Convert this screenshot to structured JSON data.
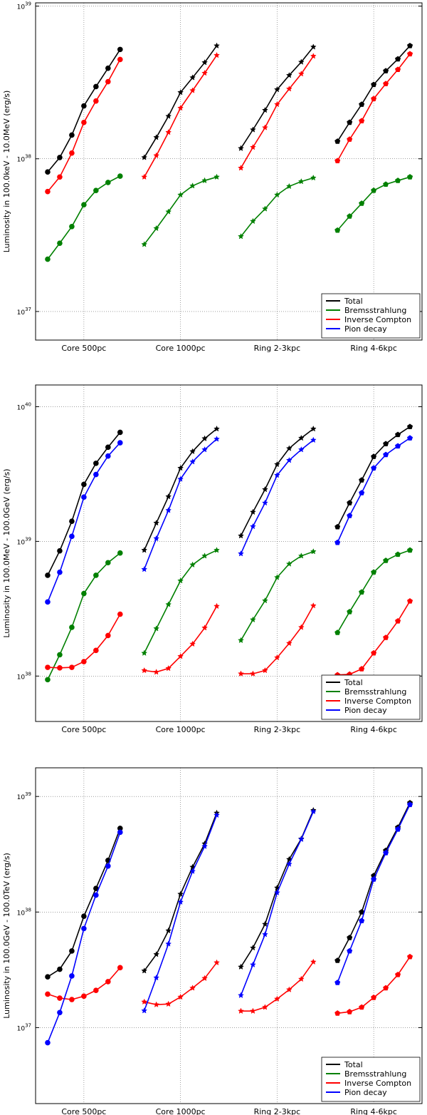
{
  "chart_data": [
    {
      "type": "line",
      "ylabel": "Luminosity in 100.0keV -  10.0MeV (erg/s)",
      "log_y": true,
      "grid": true,
      "legend": "lower right",
      "categories": [
        "Core 500pc",
        "Core 1000pc",
        "Ring 2-3kpc",
        "Ring 4-6kpc"
      ],
      "markers": [
        "circle",
        "star",
        "star",
        "pentagon"
      ],
      "ylim": [
        6.5e+36,
        1.05e+39
      ],
      "yticks": [
        {
          "value": 1e+37,
          "label": "10^37"
        },
        {
          "value": 1e+38,
          "label": "10^38"
        },
        {
          "value": 1e+39,
          "label": "10^39"
        }
      ],
      "series": [
        {
          "name": "Total",
          "color": "#000000",
          "values": [
            [
              8.2e+37,
              1.02e+38,
              1.43e+38,
              2.22e+38,
              2.97e+38,
              3.92e+38,
              5.2e+38
            ],
            [
              1.02e+38,
              1.38e+38,
              1.9e+38,
              2.72e+38,
              3.4e+38,
              4.27e+38,
              5.5e+38
            ],
            [
              1.17e+38,
              1.55e+38,
              2.08e+38,
              2.84e+38,
              3.52e+38,
              4.3e+38,
              5.4e+38
            ],
            [
              1.3e+38,
              1.73e+38,
              2.27e+38,
              3.06e+38,
              3.76e+38,
              4.5e+38,
              5.5e+38
            ]
          ]
        },
        {
          "name": "Bremsstrahlung",
          "color": "#008000",
          "values": [
            [
              2.2e+37,
              2.8e+37,
              3.6e+37,
              5e+37,
              6.2e+37,
              7e+37,
              7.7e+37
            ],
            [
              2.75e+37,
              3.5e+37,
              4.5e+37,
              5.8e+37,
              6.65e+37,
              7.2e+37,
              7.6e+37
            ],
            [
              3.1e+37,
              3.9e+37,
              4.7e+37,
              5.8e+37,
              6.6e+37,
              7.1e+37,
              7.5e+37
            ],
            [
              3.4e+37,
              4.2e+37,
              5.1e+37,
              6.2e+37,
              6.8e+37,
              7.2e+37,
              7.6e+37
            ]
          ]
        },
        {
          "name": "Inverse Compton",
          "color": "#ff0000",
          "values": [
            [
              6.1e+37,
              7.6e+37,
              1.09e+38,
              1.73e+38,
              2.39e+38,
              3.2e+38,
              4.47e+38
            ],
            [
              7.6e+37,
              1.05e+38,
              1.49e+38,
              2.15e+38,
              2.8e+38,
              3.64e+38,
              4.76e+38
            ],
            [
              8.7e+37,
              1.19e+38,
              1.6e+38,
              2.27e+38,
              2.87e+38,
              3.6e+38,
              4.7e+38
            ],
            [
              9.7e+37,
              1.34e+38,
              1.77e+38,
              2.47e+38,
              3.1e+38,
              3.84e+38,
              4.86e+38
            ]
          ]
        },
        {
          "name": "Pion decay",
          "color": "#0000ff",
          "values": [
            [
              null,
              null,
              null,
              null,
              null,
              null,
              null
            ],
            [
              null,
              null,
              null,
              null,
              null,
              null,
              null
            ],
            [
              null,
              null,
              null,
              null,
              null,
              null,
              null
            ],
            [
              null,
              null,
              null,
              null,
              null,
              null,
              null
            ]
          ]
        }
      ]
    },
    {
      "type": "line",
      "ylabel": "Luminosity in 100.0MeV - 100.0GeV (erg/s)",
      "log_y": true,
      "grid": true,
      "legend": "lower right",
      "categories": [
        "Core 500pc",
        "Core 1000pc",
        "Ring 2-3kpc",
        "Ring 4-6kpc"
      ],
      "markers": [
        "circle",
        "star",
        "star",
        "pentagon"
      ],
      "ylim": [
        4.6e+37,
        1.45e+40
      ],
      "yticks": [
        {
          "value": 1e+38,
          "label": "10^38"
        },
        {
          "value": 1e+39,
          "label": "10^39"
        },
        {
          "value": 1e+40,
          "label": "10^40"
        }
      ],
      "series": [
        {
          "name": "Total",
          "color": "#000000",
          "values": [
            [
              5.6e+38,
              8.5e+38,
              1.41e+39,
              2.65e+39,
              3.8e+39,
              5e+39,
              6.45e+39
            ],
            [
              8.6e+38,
              1.37e+39,
              2.15e+39,
              3.5e+39,
              4.65e+39,
              5.8e+39,
              6.85e+39
            ],
            [
              1.1e+39,
              1.65e+39,
              2.43e+39,
              3.73e+39,
              4.9e+39,
              5.85e+39,
              6.85e+39
            ],
            [
              1.28e+39,
              1.93e+39,
              2.85e+39,
              4.26e+39,
              5.3e+39,
              6.2e+39,
              7.1e+39
            ]
          ]
        },
        {
          "name": "Bremsstrahlung",
          "color": "#008000",
          "values": [
            [
              9.4e+37,
              1.44e+38,
              2.3e+38,
              4.1e+38,
              5.6e+38,
              6.95e+38,
              8.2e+38
            ],
            [
              1.48e+38,
              2.25e+38,
              3.4e+38,
              5.1e+38,
              6.7e+38,
              7.8e+38,
              8.6e+38
            ],
            [
              1.84e+38,
              2.62e+38,
              3.63e+38,
              5.4e+38,
              6.8e+38,
              7.8e+38,
              8.4e+38
            ],
            [
              2.1e+38,
              3e+38,
              4.2e+38,
              5.9e+38,
              7.2e+38,
              8e+38,
              8.6e+38
            ]
          ]
        },
        {
          "name": "Inverse Compton",
          "color": "#ff0000",
          "values": [
            [
              1.16e+38,
              1.15e+38,
              1.16e+38,
              1.28e+38,
              1.55e+38,
              2e+38,
              2.88e+38
            ],
            [
              1.1e+38,
              1.07e+38,
              1.14e+38,
              1.4e+38,
              1.73e+38,
              2.28e+38,
              3.3e+38
            ],
            [
              1.04e+38,
              1.04e+38,
              1.1e+38,
              1.37e+38,
              1.75e+38,
              2.3e+38,
              3.33e+38
            ],
            [
              1.02e+38,
              1.03e+38,
              1.13e+38,
              1.48e+38,
              1.93e+38,
              2.56e+38,
              3.6e+38
            ]
          ]
        },
        {
          "name": "Pion decay",
          "color": "#0000ff",
          "values": [
            [
              3.55e+38,
              5.9e+38,
              1.09e+39,
              2.13e+39,
              3.14e+39,
              4.3e+39,
              5.4e+39
            ],
            [
              6.2e+38,
              1.05e+39,
              1.7e+39,
              2.9e+39,
              3.9e+39,
              4.8e+39,
              5.75e+39
            ],
            [
              8.1e+38,
              1.29e+39,
              1.93e+39,
              3.1e+39,
              4e+39,
              4.8e+39,
              5.65e+39
            ],
            [
              9.8e+38,
              1.55e+39,
              2.29e+39,
              3.5e+39,
              4.4e+39,
              5.1e+39,
              5.85e+39
            ]
          ]
        }
      ]
    },
    {
      "type": "line",
      "ylabel": "Luminosity in 100.0GeV - 100.0TeV (erg/s)",
      "log_y": true,
      "grid": true,
      "legend": "lower right",
      "categories": [
        "Core 500pc",
        "Core 1000pc",
        "Ring 2-3kpc",
        "Ring 4-6kpc"
      ],
      "markers": [
        "circle",
        "star",
        "star",
        "pentagon"
      ],
      "ylim": [
        2.2e+36,
        1.77e+39
      ],
      "yticks": [
        {
          "value": 1e+37,
          "label": "10^37"
        },
        {
          "value": 1e+38,
          "label": "10^38"
        },
        {
          "value": 1e+39,
          "label": "10^39"
        }
      ],
      "series": [
        {
          "name": "Total",
          "color": "#000000",
          "values": [
            [
              2.75e+37,
              3.2e+37,
              4.6e+37,
              9.2e+37,
              1.6e+38,
              2.8e+38,
              5.3e+38
            ],
            [
              3.1e+37,
              4.3e+37,
              6.9e+37,
              1.43e+38,
              2.45e+38,
              3.9e+38,
              7.2e+38
            ],
            [
              3.35e+37,
              4.9e+37,
              7.85e+37,
              1.62e+38,
              2.86e+38,
              4.3e+38,
              7.6e+38
            ],
            [
              3.8e+37,
              6e+37,
              1e+38,
              2.06e+38,
              3.4e+38,
              5.4e+38,
              8.8e+38
            ]
          ]
        },
        {
          "name": "Bremsstrahlung",
          "color": "#008000",
          "values": [
            [
              null,
              null,
              null,
              null,
              null,
              null,
              null
            ],
            [
              null,
              null,
              null,
              null,
              null,
              null,
              null
            ],
            [
              null,
              null,
              null,
              null,
              null,
              null,
              null
            ],
            [
              null,
              null,
              null,
              null,
              null,
              null,
              null
            ]
          ]
        },
        {
          "name": "Inverse Compton",
          "color": "#ff0000",
          "values": [
            [
              1.95e+37,
              1.8e+37,
              1.75e+37,
              1.87e+37,
              2.1e+37,
              2.5e+37,
              3.3e+37
            ],
            [
              1.67e+37,
              1.58e+37,
              1.6e+37,
              1.84e+37,
              2.2e+37,
              2.67e+37,
              3.65e+37
            ],
            [
              1.39e+37,
              1.39e+37,
              1.5e+37,
              1.77e+37,
              2.13e+37,
              2.63e+37,
              3.7e+37
            ],
            [
              1.33e+37,
              1.37e+37,
              1.5e+37,
              1.82e+37,
              2.2e+37,
              2.87e+37,
              4.1e+37
            ]
          ]
        },
        {
          "name": "Pion decay",
          "color": "#0000ff",
          "values": [
            [
              7.4e+36,
              1.35e+37,
              2.8e+37,
              7.2e+37,
              1.4e+38,
              2.5e+38,
              4.9e+38
            ],
            [
              1.4e+37,
              2.7e+37,
              5.3e+37,
              1.22e+38,
              2.25e+38,
              3.7e+38,
              6.9e+38
            ],
            [
              1.9e+37,
              3.5e+37,
              6.4e+37,
              1.47e+38,
              2.6e+38,
              4.26e+38,
              7.4e+38
            ],
            [
              2.45e+37,
              4.6e+37,
              8.4e+37,
              1.92e+38,
              3.25e+38,
              5.2e+38,
              8.5e+38
            ]
          ]
        }
      ]
    }
  ]
}
